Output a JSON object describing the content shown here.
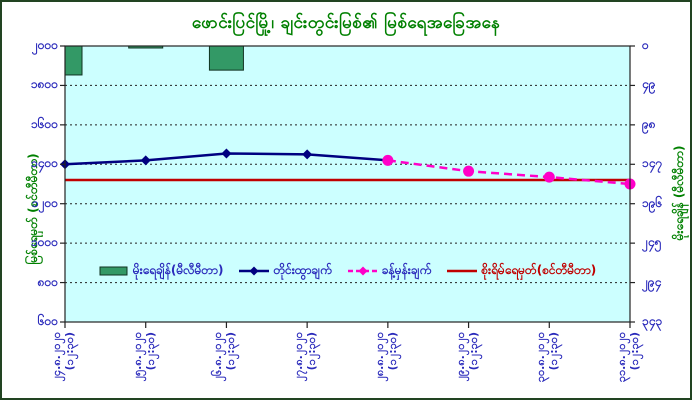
{
  "chart_data": {
    "type": "combo",
    "title": "ဖောင်းပြင်မြို့၊ ချင်းတွင်းမြစ်၏ မြစ်ရေအခြေအနေ",
    "plot_bg": "#ccffff",
    "grid": "dashed",
    "categories": [
      "၂၄.၈.၂၀၂၀",
      "၂၅.၈.၂၀၂၀",
      "၂၆.၈.၂၀၂၀",
      "၂၇.၈.၂၀၂၀",
      "၂၈.၈.၂၀၂၀",
      "၂၉.၈.၂၀၂၀",
      "၃၀.၈.၂၀၂၀",
      "၃၁.၈.၂၀၂၀"
    ],
    "category_time": "(၁၂:၃၀)",
    "left_axis": {
      "label": "မြစ်ရေမှတ် (စင်တီမီတာ)",
      "min": 600,
      "max": 2000,
      "step": 200,
      "tick_values": [
        2000,
        1800,
        1600,
        1400,
        1200,
        1000,
        800,
        600
      ],
      "tick_labels": [
        "၂၀၀၀",
        "၁၈၀၀",
        "၁၆၀၀",
        "၁၄၀၀",
        "၁၂၀၀",
        "၁၀၀၀",
        "၈၀၀",
        "၆၀၀"
      ]
    },
    "right_axis": {
      "label": "မိုးရေချိန် (မီလီမီတာ)",
      "min": 0,
      "max": 343,
      "step": 49,
      "inverted": true,
      "tick_values": [
        0,
        49,
        98,
        147,
        196,
        245,
        294,
        343
      ],
      "tick_labels": [
        "၀",
        "၄၉",
        "၉၈",
        "၁၄၇",
        "၁၉၆",
        "၂၄၅",
        "၂၉၄",
        "၃၄၃"
      ]
    },
    "series": [
      {
        "name": "မိုးရေချိန်(မီလီမီတာ)",
        "type": "bar",
        "axis": "right",
        "color": "#339966",
        "border_color": "#113322",
        "label_color": "#2b2bbb",
        "values": [
          36,
          2,
          30,
          0,
          0,
          0,
          0,
          0
        ]
      },
      {
        "name": "တိုင်းထွာချက်",
        "type": "line",
        "style": "solid",
        "marker": "diamond",
        "axis": "left",
        "color": "#000080",
        "label_color": "#2b2bbb",
        "values": [
          1400,
          1420,
          1455,
          1450,
          1420,
          null,
          null,
          null
        ]
      },
      {
        "name": "ခန့်မှန်းချက်",
        "type": "line",
        "style": "dashed",
        "marker": "circle",
        "axis": "left",
        "color": "#ff00c8",
        "label_color": "#2b2bbb",
        "values": [
          null,
          null,
          null,
          null,
          1420,
          1365,
          1335,
          1300
        ]
      },
      {
        "name": "စိုးရိမ်ရေမှတ်(စင်တီမီတာ)",
        "type": "hline",
        "axis": "left",
        "color": "#c00000",
        "label_color": "#c00000",
        "value": 1320
      }
    ]
  }
}
